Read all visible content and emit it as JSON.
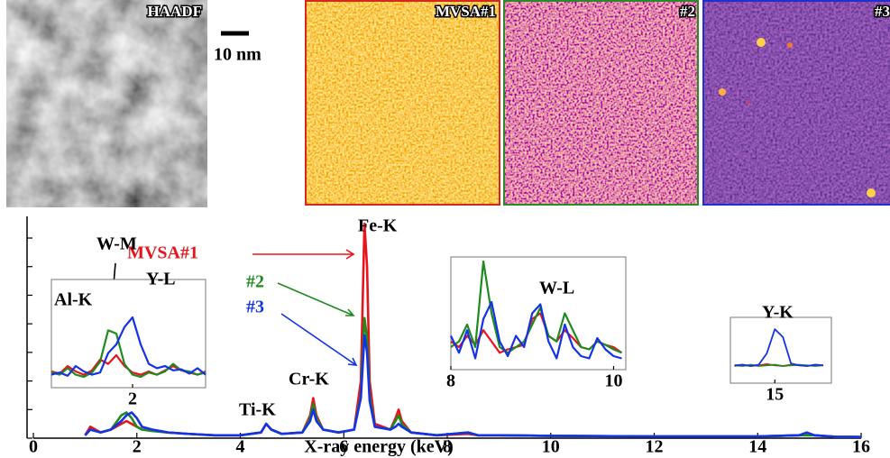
{
  "panels": [
    {
      "label": "HAADF"
    },
    {
      "label": "MVSA#1"
    },
    {
      "label": "#2"
    },
    {
      "label": "#3"
    }
  ],
  "scale_bar": "10 nm",
  "chart_data": [
    {
      "type": "line",
      "xlabel": "X-ray energy (keV)",
      "annotations": [
        "Fe-K",
        "Cr-K",
        "Ti-K"
      ],
      "xlim": [
        0,
        16
      ],
      "xticks": [
        0,
        2,
        4,
        6,
        8,
        10,
        12,
        14,
        16
      ],
      "ylim": [
        0,
        7.6
      ],
      "yticks": [
        0,
        1,
        2,
        3,
        4,
        5,
        6,
        7
      ],
      "x": [
        1.0,
        1.1,
        1.3,
        1.5,
        1.7,
        1.8,
        1.9,
        2.0,
        2.1,
        2.3,
        2.6,
        3.0,
        3.5,
        4.0,
        4.4,
        4.5,
        4.6,
        4.8,
        5.2,
        5.35,
        5.41,
        5.47,
        5.6,
        5.9,
        6.2,
        6.33,
        6.4,
        6.45,
        6.5,
        6.6,
        6.9,
        7.0,
        7.06,
        7.12,
        7.3,
        7.8,
        8.4,
        8.6,
        9.0,
        10,
        12,
        14,
        14.8,
        14.95,
        15.1,
        15.5,
        16.0
      ],
      "series": [
        {
          "name": "MVSA#1",
          "color": "#e8141b",
          "values": [
            0.1,
            0.4,
            0.2,
            0.3,
            0.5,
            0.6,
            0.5,
            0.4,
            0.3,
            0.3,
            0.2,
            0.15,
            0.1,
            0.1,
            0.2,
            0.5,
            0.3,
            0.15,
            0.2,
            0.8,
            1.4,
            0.8,
            0.3,
            0.2,
            0.3,
            2.0,
            7.5,
            6.0,
            2.0,
            0.5,
            0.3,
            0.7,
            1.0,
            0.6,
            0.2,
            0.1,
            0.15,
            0.1,
            0.1,
            0.08,
            0.06,
            0.06,
            0.1,
            0.15,
            0.1,
            0.05,
            0.04
          ]
        },
        {
          "name": "#2",
          "color": "#1f8a1f",
          "values": [
            0.1,
            0.3,
            0.2,
            0.3,
            0.8,
            0.9,
            0.7,
            0.4,
            0.3,
            0.25,
            0.2,
            0.15,
            0.1,
            0.1,
            0.2,
            0.5,
            0.3,
            0.15,
            0.2,
            0.7,
            1.2,
            0.7,
            0.3,
            0.2,
            0.3,
            1.5,
            4.2,
            3.5,
            1.5,
            0.4,
            0.3,
            0.6,
            0.8,
            0.5,
            0.2,
            0.1,
            0.2,
            0.1,
            0.1,
            0.08,
            0.06,
            0.06,
            0.1,
            0.1,
            0.1,
            0.05,
            0.04
          ]
        },
        {
          "name": "#3",
          "color": "#1432e6",
          "values": [
            0.1,
            0.3,
            0.2,
            0.3,
            0.6,
            0.8,
            0.9,
            0.7,
            0.4,
            0.3,
            0.2,
            0.15,
            0.1,
            0.1,
            0.2,
            0.5,
            0.3,
            0.15,
            0.2,
            0.6,
            1.0,
            0.6,
            0.3,
            0.2,
            0.3,
            1.4,
            3.6,
            3.0,
            1.3,
            0.4,
            0.3,
            0.4,
            0.5,
            0.4,
            0.2,
            0.1,
            0.2,
            0.1,
            0.1,
            0.08,
            0.06,
            0.06,
            0.1,
            0.2,
            0.1,
            0.05,
            0.04
          ]
        }
      ]
    },
    {
      "type": "line",
      "annotations": [
        "Al-K",
        "W-M",
        "Y-L"
      ],
      "xlim": [
        1.0,
        2.9
      ],
      "xticks": [
        2
      ],
      "ylim": [
        0,
        10
      ],
      "x": [
        1.0,
        1.1,
        1.2,
        1.3,
        1.4,
        1.5,
        1.6,
        1.7,
        1.8,
        1.9,
        2.0,
        2.1,
        2.2,
        2.3,
        2.4,
        2.5,
        2.6,
        2.7,
        2.8,
        2.9
      ],
      "series": [
        {
          "color": "#e8141b",
          "values": [
            1.5,
            1.3,
            2.0,
            1.5,
            1.2,
            1.6,
            2.6,
            2.2,
            3.0,
            2.0,
            1.4,
            1.2,
            1.5,
            1.2,
            1.6,
            2.0,
            1.6,
            1.4,
            1.2,
            1.5
          ]
        },
        {
          "color": "#1f8a1f",
          "values": [
            1.4,
            1.2,
            1.8,
            1.2,
            1.0,
            1.4,
            2.4,
            5.3,
            5.0,
            2.2,
            1.2,
            1.0,
            1.4,
            1.2,
            1.5,
            2.2,
            1.6,
            1.5,
            1.2,
            1.4
          ]
        },
        {
          "color": "#1432e6",
          "values": [
            1.2,
            1.4,
            1.1,
            2.0,
            1.5,
            1.2,
            1.4,
            3.2,
            4.0,
            5.6,
            6.5,
            4.0,
            2.2,
            1.8,
            2.0,
            1.6,
            1.7,
            1.3,
            1.8,
            1.2
          ]
        }
      ]
    },
    {
      "type": "line",
      "annotations": [
        "W-L"
      ],
      "xlim": [
        8,
        10.15
      ],
      "xticks": [
        8,
        10
      ],
      "ylim": [
        0,
        10
      ],
      "x": [
        8.0,
        8.1,
        8.2,
        8.3,
        8.4,
        8.5,
        8.6,
        8.7,
        8.8,
        8.9,
        9.0,
        9.1,
        9.2,
        9.3,
        9.4,
        9.5,
        9.6,
        9.7,
        9.8,
        9.9,
        10.0,
        10.1
      ],
      "series": [
        {
          "color": "#e8141b",
          "values": [
            2.5,
            2.0,
            3.0,
            2.2,
            3.5,
            2.5,
            1.5,
            1.8,
            2.0,
            2.2,
            4.5,
            5.0,
            3.0,
            2.5,
            3.5,
            2.8,
            2.0,
            1.8,
            2.5,
            2.2,
            2.0,
            1.5
          ]
        },
        {
          "color": "#1f8a1f",
          "values": [
            2.0,
            2.5,
            4.0,
            2.0,
            9.6,
            5.0,
            2.0,
            1.5,
            2.0,
            2.5,
            4.0,
            5.5,
            3.0,
            2.5,
            5.0,
            3.5,
            2.0,
            1.8,
            2.5,
            2.2,
            1.8,
            1.5
          ]
        },
        {
          "color": "#1432e6",
          "values": [
            3.0,
            1.5,
            3.5,
            1.0,
            4.5,
            6.0,
            2.5,
            1.2,
            3.0,
            2.0,
            5.0,
            5.8,
            2.5,
            1.0,
            4.0,
            2.0,
            1.2,
            1.0,
            2.8,
            1.8,
            1.2,
            1.0
          ]
        }
      ]
    },
    {
      "type": "line",
      "annotations": [
        "Y-K"
      ],
      "xlim": [
        14.45,
        15.7
      ],
      "xticks": [
        15
      ],
      "ylim": [
        0,
        10
      ],
      "x": [
        14.5,
        14.6,
        14.7,
        14.8,
        14.9,
        15.0,
        15.1,
        15.2,
        15.3,
        15.4,
        15.5,
        15.6
      ],
      "series": [
        {
          "color": "#e8141b",
          "values": [
            2.6,
            2.8,
            2.6,
            2.7,
            2.9,
            2.7,
            2.6,
            2.8,
            2.7,
            2.6,
            2.8,
            2.7
          ]
        },
        {
          "color": "#1f8a1f",
          "values": [
            2.7,
            2.6,
            2.8,
            2.6,
            2.7,
            2.8,
            2.6,
            2.7,
            2.8,
            2.7,
            2.6,
            2.7
          ]
        },
        {
          "color": "#1432e6",
          "values": [
            2.7,
            2.8,
            2.6,
            2.8,
            4.5,
            8.2,
            7.0,
            3.0,
            2.7,
            2.6,
            2.8,
            2.7
          ]
        }
      ]
    }
  ]
}
